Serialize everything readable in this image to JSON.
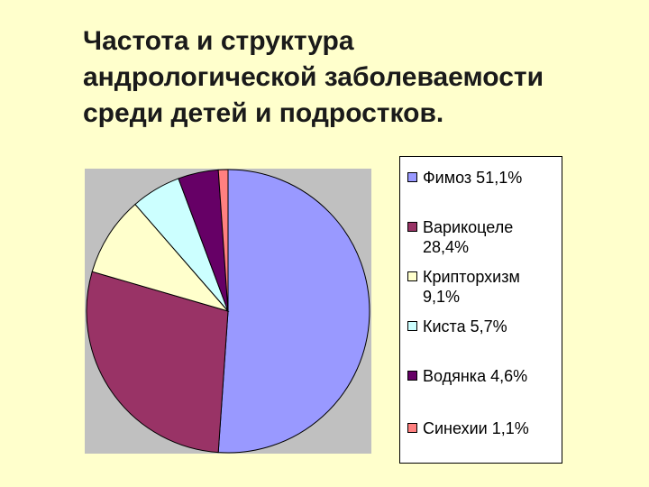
{
  "title": {
    "line1": "Частота и структура",
    "line2": "андрологической заболеваемости",
    "line3": "среди детей и подростков."
  },
  "chart_data": {
    "type": "pie",
    "title": "Частота и структура андрологической заболеваемости среди детей и подростков.",
    "slices": [
      {
        "label": "Фимоз 51,1%",
        "value": 51.1,
        "color": "#9999ff"
      },
      {
        "label": "Варикоцеле 28,4%",
        "value": 28.4,
        "color": "#993366"
      },
      {
        "label": "Крипторхизм 9,1%",
        "value": 9.1,
        "color": "#ffffcc"
      },
      {
        "label": "Киста 5,7%",
        "value": 5.7,
        "color": "#ccffff"
      },
      {
        "label": "Водянка 4,6%",
        "value": 4.6,
        "color": "#660066"
      },
      {
        "label": "Синехии 1,1%",
        "value": 1.1,
        "color": "#ff8080"
      }
    ],
    "start_angle": "12 o'clock",
    "direction": "clockwise",
    "legend_position": "right"
  }
}
